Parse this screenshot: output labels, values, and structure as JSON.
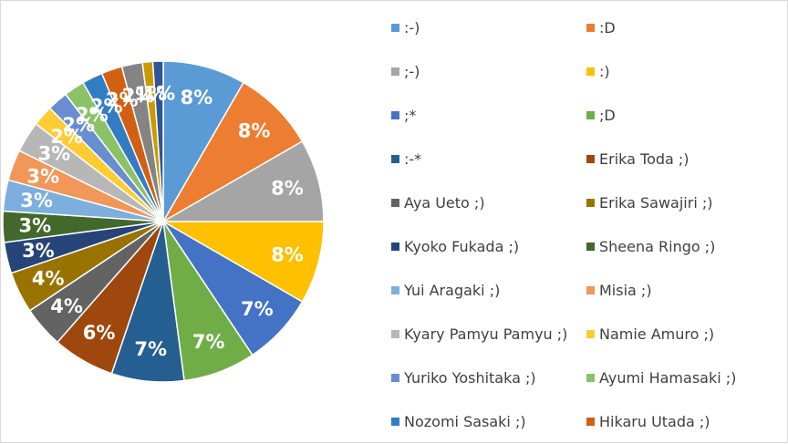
{
  "chart_data": {
    "type": "pie",
    "start_angle_deg": 0,
    "direction": "clockwise",
    "legend_position": "right",
    "slices": [
      {
        "name": ":-)",
        "value": 8,
        "label": "8%",
        "color": "#5B9BD5"
      },
      {
        "name": ":D",
        "value": 8,
        "label": "8%",
        "color": "#ED7D31"
      },
      {
        "name": ";-)",
        "value": 8,
        "label": "8%",
        "color": "#A5A5A5"
      },
      {
        "name": ":)",
        "value": 8,
        "label": "8%",
        "color": "#FFC000"
      },
      {
        "name": ";*",
        "value": 7,
        "label": "7%",
        "color": "#4472C4"
      },
      {
        "name": ";D",
        "value": 7,
        "label": "7%",
        "color": "#70AD47"
      },
      {
        "name": ":-*",
        "value": 7,
        "label": "7%",
        "color": "#255E91"
      },
      {
        "name": "Erika Toda ;)",
        "value": 6,
        "label": "6%",
        "color": "#9E480E"
      },
      {
        "name": "Aya Ueto ;)",
        "value": 4,
        "label": "4%",
        "color": "#636363"
      },
      {
        "name": "Erika Sawajiri ;)",
        "value": 4,
        "label": "4%",
        "color": "#997300"
      },
      {
        "name": "Kyoko Fukada ;)",
        "value": 3,
        "label": "3%",
        "color": "#264478"
      },
      {
        "name": "Sheena Ringo ;)",
        "value": 3,
        "label": "3%",
        "color": "#43682B"
      },
      {
        "name": "Yui Aragaki ;)",
        "value": 3,
        "label": "3%",
        "color": "#7CAFDD"
      },
      {
        "name": "Misia ;)",
        "value": 3,
        "label": "3%",
        "color": "#F1975A"
      },
      {
        "name": "Kyary Pamyu Pamyu ;)",
        "value": 3,
        "label": "3%",
        "color": "#B7B7B7"
      },
      {
        "name": "Namie Amuro ;)",
        "value": 2,
        "label": "2%",
        "color": "#FFCD33"
      },
      {
        "name": "Yuriko Yoshitaka ;)",
        "value": 2,
        "label": "2%",
        "color": "#698ED0"
      },
      {
        "name": "Ayumi Hamasaki ;)",
        "value": 2,
        "label": "2%",
        "color": "#8CC168"
      },
      {
        "name": "Nozomi Sasaki ;)",
        "value": 2,
        "label": "2%",
        "color": "#327DC2"
      },
      {
        "name": "Hikaru Utada ;)",
        "value": 2,
        "label": "2%",
        "color": "#D26012"
      },
      {
        "name": "",
        "value": 2,
        "label": "2%",
        "color": "#848484"
      },
      {
        "name": "",
        "value": 1,
        "label": "1%",
        "color": "#CC9A00"
      },
      {
        "name": "",
        "value": 1,
        "label": "1%",
        "color": "#2F5597"
      }
    ],
    "legend_entries": [
      ":-)",
      ":D",
      ";-)",
      ":)",
      ";*",
      ";D",
      ":-*",
      "Erika Toda ;)",
      "Aya Ueto ;)",
      "Erika Sawajiri ;)",
      "Kyoko Fukada ;)",
      "Sheena Ringo ;)",
      "Yui Aragaki ;)",
      "Misia ;)",
      "Kyary Pamyu Pamyu ;)",
      "Namie Amuro ;)",
      "Yuriko Yoshitaka ;)",
      "Ayumi Hamasaki ;)",
      "Nozomi Sasaki ;)",
      "Hikaru Utada ;)"
    ]
  }
}
